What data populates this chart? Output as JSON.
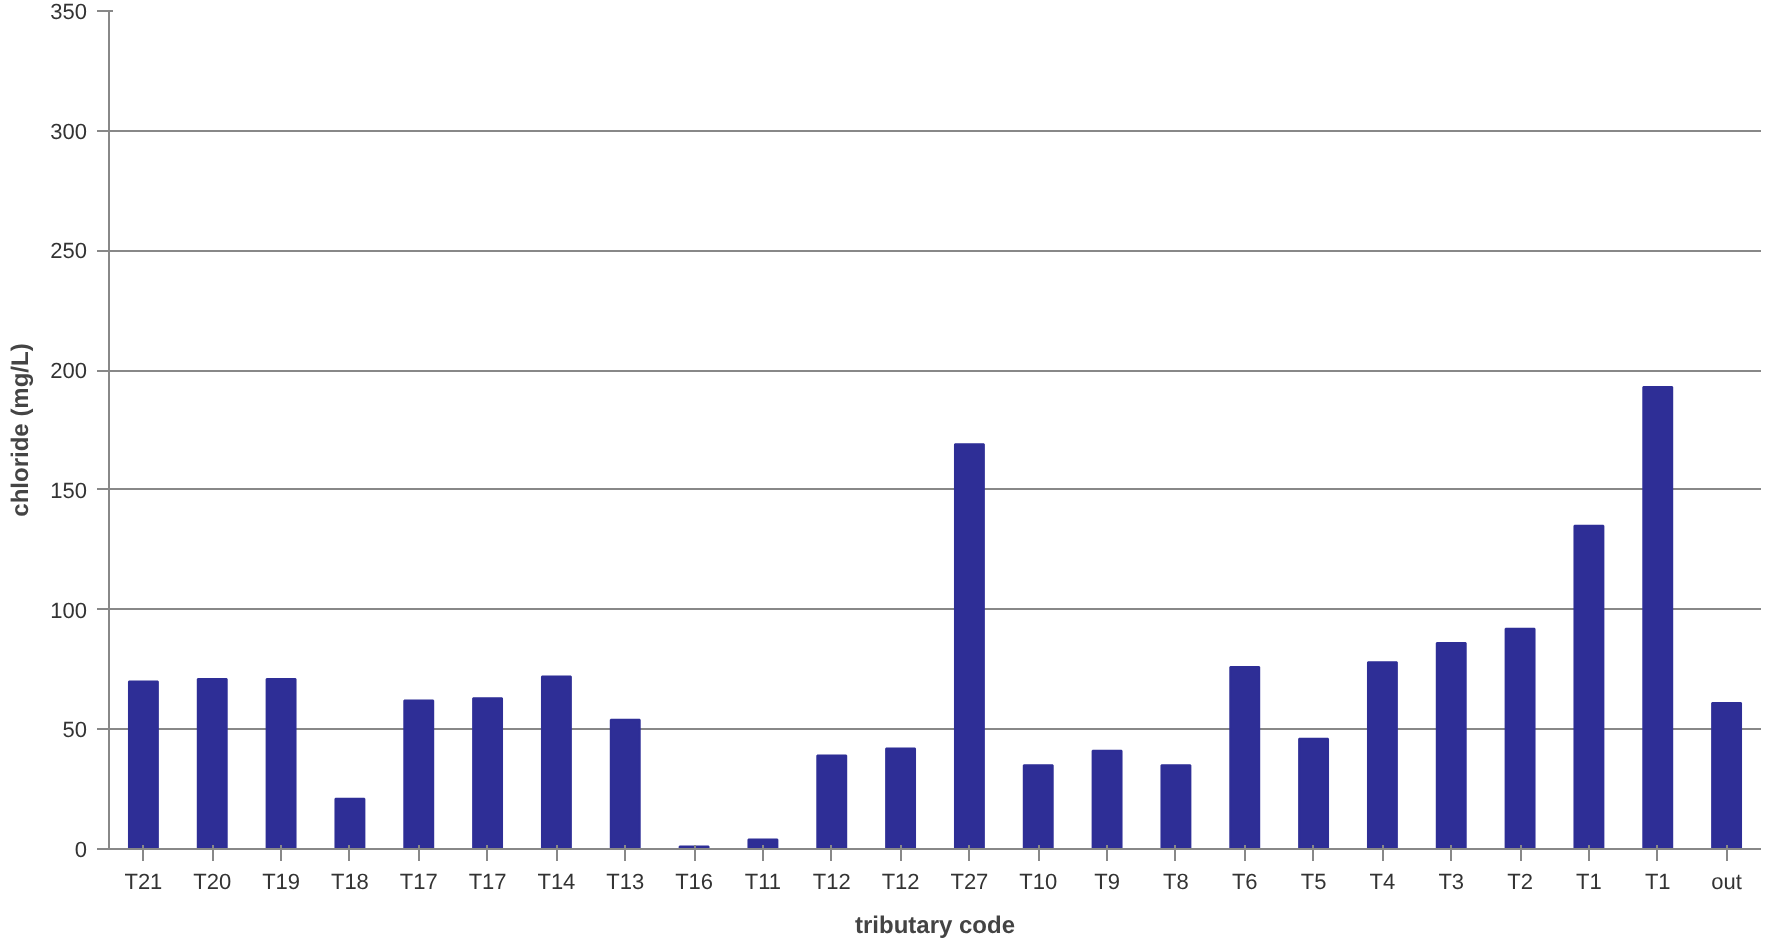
{
  "chart_data": {
    "type": "bar",
    "xlabel": "tributary code",
    "ylabel": "chloride (mg/L)",
    "categories": [
      "T21",
      "T20",
      "T19",
      "T18",
      "T17",
      "T17",
      "T14",
      "T13",
      "T16",
      "T11",
      "T12",
      "T12",
      "T27",
      "T10",
      "T9",
      "T8",
      "T6",
      "T5",
      "T4",
      "T3",
      "T2",
      "T1",
      "T1",
      "out"
    ],
    "values": [
      70,
      71,
      71,
      21,
      62,
      63,
      72,
      54,
      1,
      4,
      39,
      42,
      169,
      35,
      41,
      35,
      76,
      46,
      78,
      86,
      92,
      135,
      193,
      61
    ],
    "color": "#2e2e96",
    "ylim": [
      0,
      350
    ],
    "yticks": [
      0,
      50,
      100,
      150,
      200,
      250,
      300,
      350
    ],
    "grid": "y"
  }
}
